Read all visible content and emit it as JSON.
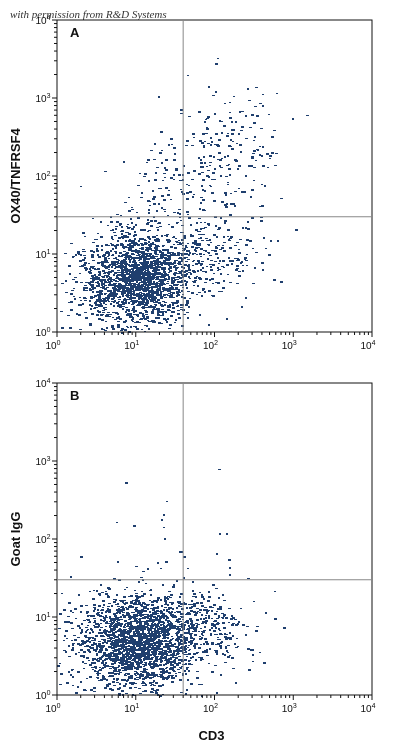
{
  "watermark": "with permission from R&D Systems",
  "chart_data": [
    {
      "type": "scatter",
      "panel_label": "A",
      "xlabel": "",
      "ylabel": "OX40/TNFRSF4",
      "xscale": "log",
      "yscale": "log",
      "xlim": [
        1,
        10000
      ],
      "ylim": [
        1,
        10000
      ],
      "x_ticks": [
        "10^0",
        "10^1",
        "10^2",
        "10^3",
        "10^4"
      ],
      "y_ticks": [
        "10^0",
        "10^1",
        "10^2",
        "10^3",
        "10^4"
      ],
      "quadrant_gate": {
        "x": 40,
        "y": 30
      },
      "point_color": "#1f3f6e",
      "populations": [
        {
          "center": [
            12,
            5
          ],
          "spread_log": [
            0.32,
            0.3
          ],
          "count": 1500
        },
        {
          "center": [
            5,
            4
          ],
          "spread_log": [
            0.35,
            0.35
          ],
          "count": 350
        },
        {
          "center": [
            70,
            9
          ],
          "spread_log": [
            0.35,
            0.25
          ],
          "count": 250
        },
        {
          "center": [
            130,
            180
          ],
          "spread_log": [
            0.35,
            0.45
          ],
          "count": 220
        },
        {
          "center": [
            25,
            60
          ],
          "spread_log": [
            0.3,
            0.3
          ],
          "count": 90
        }
      ]
    },
    {
      "type": "scatter",
      "panel_label": "B",
      "xlabel": "CD3",
      "ylabel": "Goat IgG",
      "xscale": "log",
      "yscale": "log",
      "xlim": [
        1,
        10000
      ],
      "ylim": [
        1,
        10000
      ],
      "x_ticks": [
        "10^0",
        "10^1",
        "10^2",
        "10^3",
        "10^4"
      ],
      "y_ticks": [
        "10^0",
        "10^1",
        "10^2",
        "10^3",
        "10^4"
      ],
      "quadrant_gate": {
        "x": 40,
        "y": 30
      },
      "point_color": "#1f3f6e",
      "populations": [
        {
          "center": [
            12,
            5
          ],
          "spread_log": [
            0.32,
            0.28
          ],
          "count": 1700
        },
        {
          "center": [
            5,
            4
          ],
          "spread_log": [
            0.35,
            0.35
          ],
          "count": 400
        },
        {
          "center": [
            80,
            7
          ],
          "spread_log": [
            0.3,
            0.25
          ],
          "count": 300
        },
        {
          "center": [
            30,
            60
          ],
          "spread_log": [
            0.5,
            0.45
          ],
          "count": 35
        }
      ]
    }
  ]
}
